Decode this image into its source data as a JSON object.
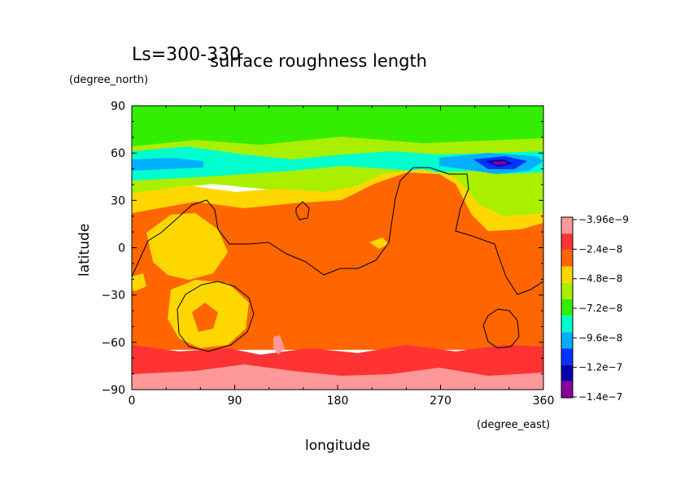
{
  "chart_data": {
    "type": "heatmap",
    "season_label": "Ls=300-330",
    "title": "surface roughness length",
    "xlabel": "longitude",
    "xunit": "(degree_east)",
    "ylabel": "latitude",
    "yunit": "(degree_north)",
    "xlim": [
      0,
      360
    ],
    "ylim": [
      -90,
      90
    ],
    "xticks": [
      "0",
      "90",
      "180",
      "270",
      "360"
    ],
    "yticks": [
      "90",
      "60",
      "30",
      "0",
      "−30",
      "−60",
      "−90"
    ],
    "legend": {
      "placement": "right",
      "labels": [
        "−3.96e−9",
        "−2.4e−8",
        "−4.8e−8",
        "−7.2e−8",
        "−9.6e−8",
        "−1.2e−7",
        "−1.4e−7"
      ],
      "colors": [
        "#ff9999",
        "#ff3333",
        "#ff6600",
        "#ffd700",
        "#aaee00",
        "#33ee00",
        "#00ffcc",
        "#00b0ff",
        "#0033ff",
        "#0000aa",
        "#880099"
      ]
    },
    "contours": [
      {
        "name": "topography outline (northern lowland boundary)"
      },
      {
        "name": "Hellas basin outline"
      },
      {
        "name": "Argyre basin outline"
      }
    ]
  }
}
